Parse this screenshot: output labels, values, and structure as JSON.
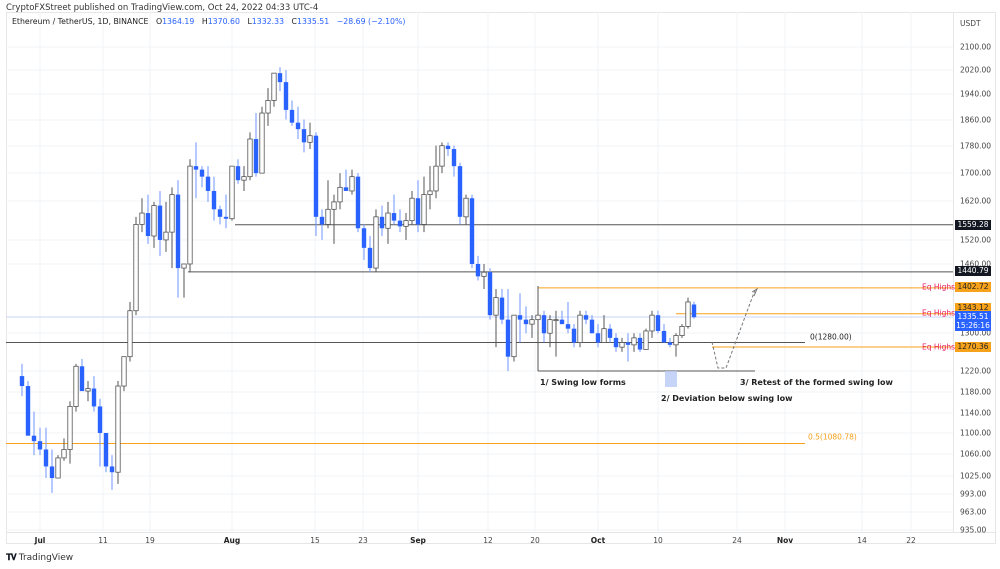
{
  "publisher": "CryptoFXStreet published on TradingView.com, Oct 24, 2022 04:33 UTC-4",
  "legend": {
    "symbol": "Ethereum / TetherUS, 1D, BINANCE",
    "open_label": "O",
    "open": "1364.19",
    "high_label": "H",
    "high": "1370.60",
    "low_label": "L",
    "low": "1332.33",
    "close_label": "C",
    "close": "1335.51",
    "change": "−28.69 (−2.10%)"
  },
  "price_axis": {
    "title": "USDT",
    "ticks": [
      "2100.00",
      "2020.00",
      "1940.00",
      "1860.00",
      "1780.00",
      "1700.00",
      "1620.00",
      "1520.00",
      "1460.00",
      "1300.00",
      "1220.00",
      "1180.00",
      "1140.00",
      "1100.00",
      "1060.00",
      "1025.00",
      "993.00",
      "963.00",
      "935.00"
    ],
    "labels": {
      "level_1559": "1559.28",
      "level_1440": "1440.79",
      "eq_high_1": "1402.72",
      "eq_high_2": "1343.12",
      "last_price": "1335.51",
      "countdown": "15:26:16",
      "eq_high_3": "1270.36"
    }
  },
  "time_axis": {
    "ticks": [
      "Jul",
      "11",
      "19",
      "Aug",
      "15",
      "23",
      "Sep",
      "12",
      "20",
      "Oct",
      "10",
      "24",
      "Nov",
      "14",
      "22"
    ]
  },
  "annotations": {
    "eq_highs": "Eq Highs",
    "fib_0": "0(1280.00)",
    "fib_05": "0.5(1080.78)",
    "step1": "1/ Swing low forms",
    "step2": "2/ Deviation below swing low",
    "step3": "3/ Retest of the formed swing low"
  },
  "colors": {
    "up_candle_border": "#555555",
    "down_candle": "#2962ff",
    "orange_level": "#f7a21b",
    "eq_highs_text": "#e91e63",
    "black_level": "#131722"
  },
  "footer": {
    "brand": "TradingView"
  },
  "chart_data": {
    "type": "candlestick",
    "title": "Ethereum / TetherUS, 1D, BINANCE",
    "xlabel": "",
    "ylabel": "USDT",
    "ylim": [
      935,
      2100
    ],
    "scale": "log",
    "grid": true,
    "start_date": "2022-06-27",
    "candles": [
      [
        1210,
        1235,
        1170,
        1190
      ],
      [
        1190,
        1200,
        1110,
        1095
      ],
      [
        1095,
        1140,
        1060,
        1085
      ],
      [
        1085,
        1110,
        1060,
        1070
      ],
      [
        1070,
        1110,
        1020,
        1040
      ],
      [
        1040,
        1070,
        995,
        1020
      ],
      [
        1020,
        1060,
        1040,
        1055
      ],
      [
        1055,
        1090,
        1050,
        1070
      ],
      [
        1070,
        1160,
        1045,
        1150
      ],
      [
        1150,
        1235,
        1140,
        1230
      ],
      [
        1230,
        1245,
        1200,
        1180
      ],
      [
        1180,
        1200,
        1160,
        1185
      ],
      [
        1185,
        1210,
        1140,
        1150
      ],
      [
        1150,
        1165,
        1040,
        1100
      ],
      [
        1100,
        1080,
        1030,
        1040
      ],
      [
        1040,
        1060,
        1000,
        1030
      ],
      [
        1030,
        1200,
        1010,
        1190
      ],
      [
        1190,
        1250,
        1180,
        1250
      ],
      [
        1250,
        1370,
        1240,
        1350
      ],
      [
        1350,
        1580,
        1340,
        1560
      ],
      [
        1560,
        1630,
        1540,
        1590
      ],
      [
        1590,
        1640,
        1510,
        1530
      ],
      [
        1530,
        1620,
        1500,
        1610
      ],
      [
        1610,
        1650,
        1480,
        1520
      ],
      [
        1520,
        1620,
        1490,
        1540
      ],
      [
        1540,
        1660,
        1450,
        1640
      ],
      [
        1640,
        1680,
        1380,
        1450
      ],
      [
        1450,
        1460,
        1380,
        1460
      ],
      [
        1460,
        1740,
        1440,
        1720
      ],
      [
        1720,
        1790,
        1630,
        1710
      ],
      [
        1710,
        1720,
        1660,
        1690
      ],
      [
        1690,
        1720,
        1620,
        1650
      ],
      [
        1650,
        1690,
        1570,
        1600
      ],
      [
        1600,
        1610,
        1560,
        1580
      ],
      [
        1580,
        1640,
        1550,
        1575
      ],
      [
        1575,
        1720,
        1570,
        1720
      ],
      [
        1720,
        1740,
        1670,
        1680
      ],
      [
        1680,
        1720,
        1650,
        1690
      ],
      [
        1690,
        1820,
        1680,
        1800
      ],
      [
        1800,
        1880,
        1690,
        1700
      ],
      [
        1700,
        1900,
        1700,
        1880
      ],
      [
        1880,
        1960,
        1840,
        1920
      ],
      [
        1920,
        2000,
        1900,
        2010
      ],
      [
        2010,
        2030,
        1950,
        1980
      ],
      [
        1980,
        2020,
        1860,
        1890
      ],
      [
        1890,
        1920,
        1840,
        1850
      ],
      [
        1850,
        1900,
        1800,
        1830
      ],
      [
        1830,
        1860,
        1760,
        1790
      ],
      [
        1790,
        1850,
        1770,
        1810
      ],
      [
        1810,
        1820,
        1530,
        1580
      ],
      [
        1580,
        1600,
        1520,
        1560
      ],
      [
        1560,
        1680,
        1550,
        1600
      ],
      [
        1600,
        1640,
        1510,
        1620
      ],
      [
        1620,
        1700,
        1600,
        1660
      ],
      [
        1660,
        1710,
        1650,
        1650
      ],
      [
        1650,
        1710,
        1640,
        1690
      ],
      [
        1690,
        1700,
        1540,
        1550
      ],
      [
        1550,
        1560,
        1470,
        1500
      ],
      [
        1500,
        1530,
        1440,
        1450
      ],
      [
        1450,
        1600,
        1440,
        1580
      ],
      [
        1580,
        1610,
        1530,
        1550
      ],
      [
        1550,
        1620,
        1510,
        1590
      ],
      [
        1590,
        1640,
        1560,
        1570
      ],
      [
        1570,
        1600,
        1540,
        1555
      ],
      [
        1555,
        1590,
        1520,
        1570
      ],
      [
        1570,
        1650,
        1560,
        1630
      ],
      [
        1630,
        1680,
        1540,
        1560
      ],
      [
        1560,
        1690,
        1540,
        1640
      ],
      [
        1640,
        1720,
        1600,
        1650
      ],
      [
        1650,
        1780,
        1630,
        1720
      ],
      [
        1720,
        1790,
        1700,
        1780
      ],
      [
        1780,
        1790,
        1750,
        1770
      ],
      [
        1770,
        1780,
        1690,
        1720
      ],
      [
        1720,
        1730,
        1560,
        1580
      ],
      [
        1580,
        1640,
        1560,
        1630
      ],
      [
        1630,
        1640,
        1450,
        1460
      ],
      [
        1460,
        1480,
        1420,
        1430
      ],
      [
        1430,
        1460,
        1400,
        1440
      ],
      [
        1440,
        1450,
        1330,
        1340
      ],
      [
        1340,
        1400,
        1270,
        1380
      ],
      [
        1380,
        1400,
        1320,
        1330
      ],
      [
        1330,
        1400,
        1220,
        1250
      ],
      [
        1250,
        1340,
        1240,
        1340
      ],
      [
        1340,
        1390,
        1280,
        1330
      ],
      [
        1330,
        1360,
        1300,
        1320
      ],
      [
        1320,
        1340,
        1290,
        1330
      ],
      [
        1330,
        1390,
        1320,
        1340
      ],
      [
        1340,
        1350,
        1280,
        1300
      ],
      [
        1300,
        1340,
        1270,
        1330
      ],
      [
        1330,
        1350,
        1250,
        1330
      ],
      [
        1330,
        1350,
        1320,
        1320
      ],
      [
        1320,
        1370,
        1300,
        1310
      ],
      [
        1310,
        1320,
        1270,
        1280
      ],
      [
        1280,
        1350,
        1270,
        1340
      ],
      [
        1340,
        1350,
        1320,
        1330
      ],
      [
        1330,
        1340,
        1300,
        1300
      ],
      [
        1300,
        1320,
        1270,
        1280
      ],
      [
        1280,
        1340,
        1290,
        1310
      ],
      [
        1310,
        1320,
        1280,
        1290
      ],
      [
        1290,
        1300,
        1260,
        1270
      ],
      [
        1270,
        1290,
        1260,
        1280
      ],
      [
        1280,
        1300,
        1240,
        1275
      ],
      [
        1275,
        1300,
        1260,
        1290
      ],
      [
        1290,
        1300,
        1260,
        1265
      ],
      [
        1265,
        1310,
        1270,
        1305
      ],
      [
        1305,
        1350,
        1290,
        1340
      ],
      [
        1340,
        1350,
        1300,
        1305
      ],
      [
        1305,
        1320,
        1280,
        1280
      ],
      [
        1280,
        1290,
        1270,
        1275
      ],
      [
        1275,
        1300,
        1250,
        1295
      ],
      [
        1295,
        1320,
        1290,
        1315
      ],
      [
        1315,
        1380,
        1310,
        1370
      ],
      [
        1364.19,
        1370.6,
        1332.33,
        1335.51
      ]
    ],
    "horizontal_levels": [
      {
        "price": 1559.28,
        "color": "#131722"
      },
      {
        "price": 1440.79,
        "color": "#131722"
      },
      {
        "price": 1402.72,
        "color": "#f7a21b",
        "label": "Eq Highs"
      },
      {
        "price": 1343.12,
        "color": "#f7a21b",
        "label": "Eq Highs"
      },
      {
        "price": 1280.0,
        "color": "#131722",
        "label": "0(1280.00)"
      },
      {
        "price": 1270.36,
        "color": "#f7a21b",
        "label": "Eq Highs"
      },
      {
        "price": 1080.78,
        "color": "#f7a21b",
        "label": "0.5(1080.78)"
      }
    ]
  }
}
